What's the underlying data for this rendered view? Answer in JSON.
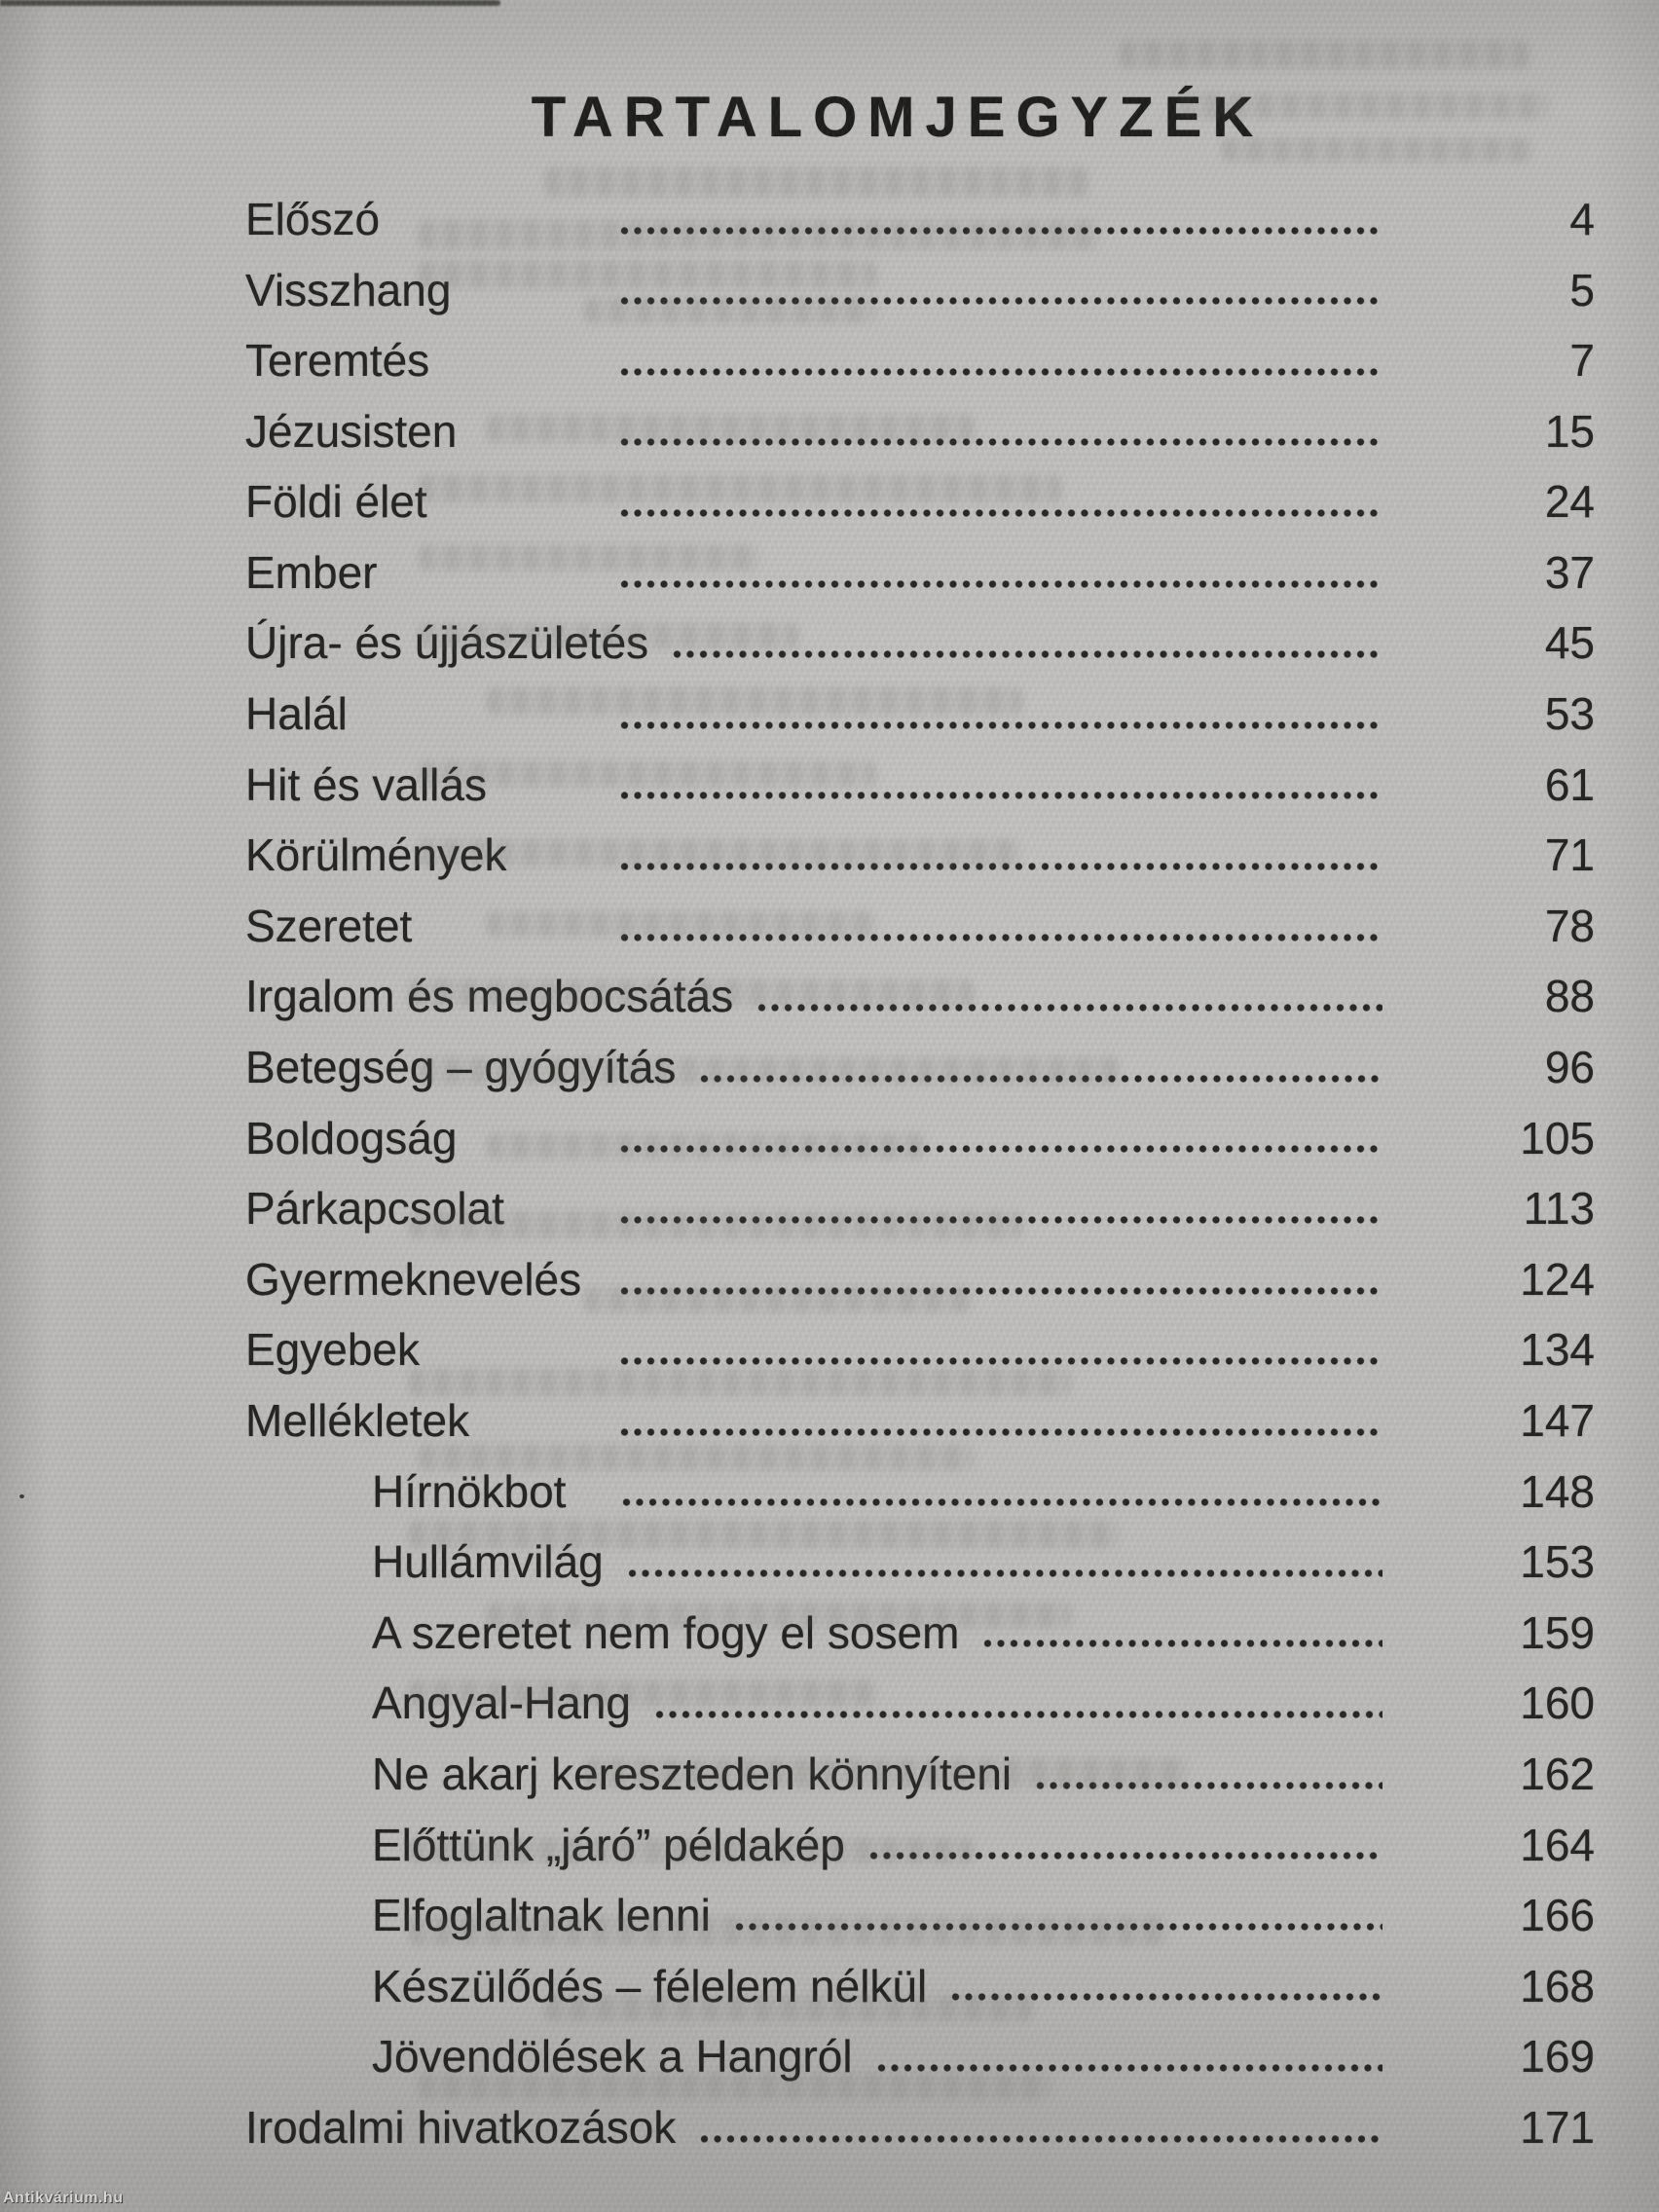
{
  "page": {
    "title": "TARTALOMJEGYZÉK",
    "watermark": "Antikvárium.hu",
    "colors": {
      "paper": "#bcbbb9",
      "ink": "#232321"
    },
    "entries": [
      {
        "label": "Előszó",
        "page": "4",
        "indent": 0
      },
      {
        "label": "Visszhang",
        "page": "5",
        "indent": 0
      },
      {
        "label": "Teremtés",
        "page": "7",
        "indent": 0
      },
      {
        "label": "Jézusisten",
        "page": "15",
        "indent": 0
      },
      {
        "label": "Földi élet",
        "page": "24",
        "indent": 0
      },
      {
        "label": "Ember",
        "page": "37",
        "indent": 0
      },
      {
        "label": "Újra- és újjászületés",
        "page": "45",
        "indent": 0
      },
      {
        "label": "Halál",
        "page": "53",
        "indent": 0
      },
      {
        "label": "Hit és vallás",
        "page": "61",
        "indent": 0
      },
      {
        "label": "Körülmények",
        "page": "71",
        "indent": 0
      },
      {
        "label": "Szeretet",
        "page": "78",
        "indent": 0
      },
      {
        "label": "Irgalom és megbocsátás",
        "page": "88",
        "indent": 0
      },
      {
        "label": "Betegség – gyógyítás",
        "page": "96",
        "indent": 0
      },
      {
        "label": "Boldogság",
        "page": "105",
        "indent": 0
      },
      {
        "label": "Párkapcsolat",
        "page": "113",
        "indent": 0
      },
      {
        "label": "Gyermeknevelés",
        "page": "124",
        "indent": 0
      },
      {
        "label": "Egyebek",
        "page": "134",
        "indent": 0
      },
      {
        "label": "Mellékletek",
        "page": "147",
        "indent": 0
      },
      {
        "label": "Hírnökbot",
        "page": "148",
        "indent": 1
      },
      {
        "label": "Hullámvilág",
        "page": "153",
        "indent": 1
      },
      {
        "label": "A szeretet nem fogy el sosem",
        "page": "159",
        "indent": 1
      },
      {
        "label": "Angyal-Hang",
        "page": "160",
        "indent": 1
      },
      {
        "label": "Ne akarj kereszteden könnyíteni",
        "page": "162",
        "indent": 1
      },
      {
        "label": "Előttünk „járó” példakép",
        "page": "164",
        "indent": 1
      },
      {
        "label": "Elfoglaltnak lenni",
        "page": "166",
        "indent": 1
      },
      {
        "label": "Készülődés – félelem nélkül",
        "page": "168",
        "indent": 1
      },
      {
        "label": "Jövendölések a Hangról",
        "page": "169",
        "indent": 1
      },
      {
        "label": "Irodalmi hivatkozások",
        "page": "171",
        "indent": 0
      }
    ]
  }
}
